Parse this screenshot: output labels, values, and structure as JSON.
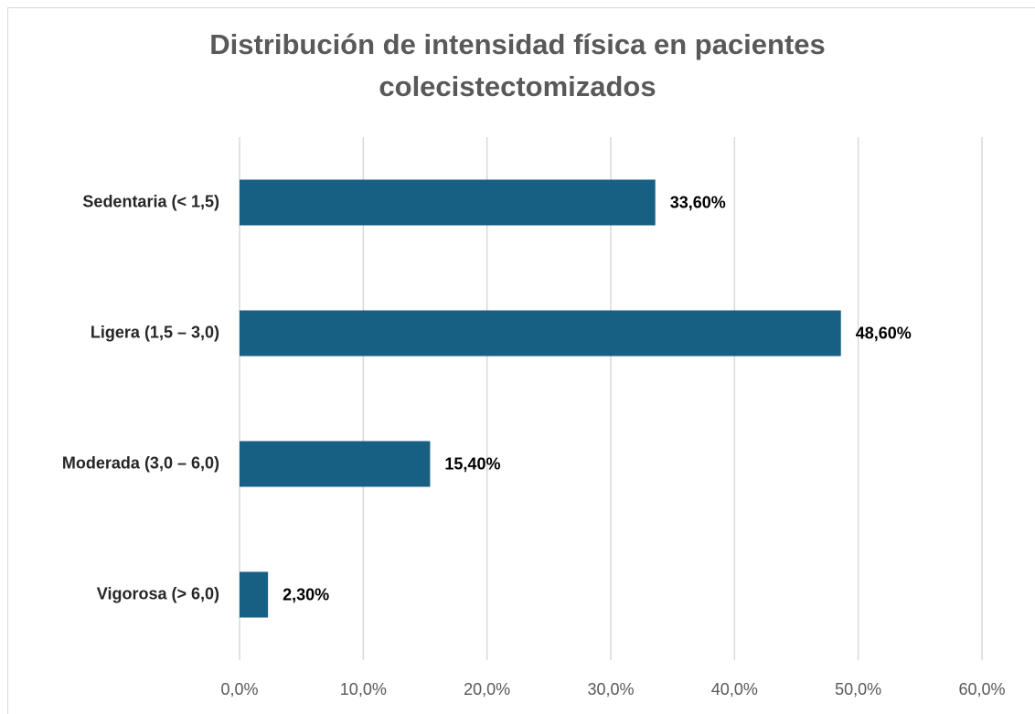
{
  "chart_data": {
    "type": "bar",
    "orientation": "horizontal",
    "title": "Distribución de intensidad física en pacientes colecistectomizados",
    "categories": [
      "Sedentaria (< 1,5)",
      "Ligera (1,5 – 3,0)",
      "Moderada (3,0 – 6,0)",
      "Vigorosa (> 6,0)"
    ],
    "values": [
      33.6,
      48.6,
      15.4,
      2.3
    ],
    "value_labels": [
      "33,60%",
      "48,60%",
      "15,40%",
      "2,30%"
    ],
    "color": "#186083",
    "xlim": [
      0,
      60
    ],
    "xticks": [
      {
        "value": 0,
        "label": "0,0%"
      },
      {
        "value": 10,
        "label": "10,0%"
      },
      {
        "value": 20,
        "label": "20,0%"
      },
      {
        "value": 30,
        "label": "30,0%"
      },
      {
        "value": 40,
        "label": "40,0%"
      },
      {
        "value": 50,
        "label": "50,0%"
      },
      {
        "value": 60,
        "label": "60,0%"
      }
    ],
    "grid": true
  }
}
